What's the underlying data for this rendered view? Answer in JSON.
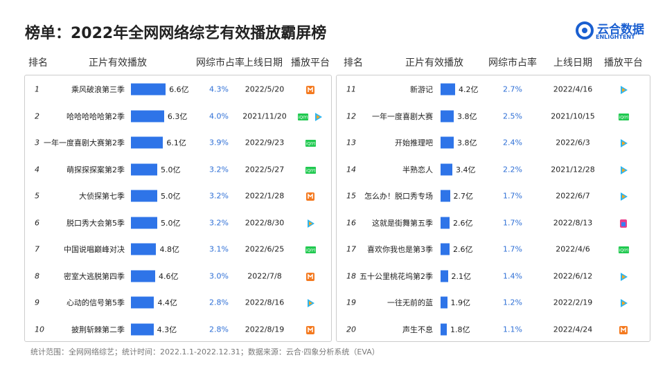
{
  "header": {
    "title": "榜单：2022年全网网络综艺有效播放霸屏榜",
    "logo": "云合数据",
    "logo_sub": "ENLIGHTENT"
  },
  "columns": [
    "排名",
    "正片有效播放",
    "网综市占率",
    "上线日期",
    "播放平台"
  ],
  "tables": [
    {
      "rows": [
        {
          "rank": 1,
          "name": "乘风破浪第三季",
          "plays": 6.6,
          "plays_label": "6.6亿",
          "share": "4.3%",
          "date": "2022/5/20"
        },
        {
          "rank": 2,
          "name": "哈哈哈哈哈第2季",
          "plays": 6.3,
          "plays_label": "6.3亿",
          "share": "4.0%",
          "date": "2021/11/20"
        },
        {
          "rank": 3,
          "name": "一年一度喜剧大赛第2季",
          "plays": 6.1,
          "plays_label": "6.1亿",
          "share": "3.9%",
          "date": "2022/9/23"
        },
        {
          "rank": 4,
          "name": "萌探探探案第2季",
          "plays": 5.0,
          "plays_label": "5.0亿",
          "share": "3.2%",
          "date": "2022/5/27"
        },
        {
          "rank": 5,
          "name": "大侦探第七季",
          "plays": 5.0,
          "plays_label": "5.0亿",
          "share": "3.2%",
          "date": "2022/1/28"
        },
        {
          "rank": 6,
          "name": "脱口秀大会第5季",
          "plays": 5.0,
          "plays_label": "5.0亿",
          "share": "3.2%",
          "date": "2022/8/30"
        },
        {
          "rank": 7,
          "name": "中国说唱巅峰对决",
          "plays": 4.8,
          "plays_label": "4.8亿",
          "share": "3.1%",
          "date": "2022/6/25"
        },
        {
          "rank": 8,
          "name": "密室大逃脱第四季",
          "plays": 4.6,
          "plays_label": "4.6亿",
          "share": "3.0%",
          "date": "2022/7/8"
        },
        {
          "rank": 9,
          "name": "心动的信号第5季",
          "plays": 4.4,
          "plays_label": "4.4亿",
          "share": "2.8%",
          "date": "2022/8/16"
        },
        {
          "rank": 10,
          "name": "披荆斩棘第二季",
          "plays": 4.3,
          "plays_label": "4.3亿",
          "share": "2.8%",
          "date": "2022/8/19"
        }
      ]
    },
    {
      "rows": [
        {
          "rank": 11,
          "name": "新游记",
          "plays": 4.2,
          "plays_label": "4.2亿",
          "share": "2.7%",
          "date": "2022/4/16"
        },
        {
          "rank": 12,
          "name": "一年一度喜剧大赛",
          "plays": 3.8,
          "plays_label": "3.8亿",
          "share": "2.5%",
          "date": "2021/10/15"
        },
        {
          "rank": 13,
          "name": "开始推理吧",
          "plays": 3.8,
          "plays_label": "3.8亿",
          "share": "2.4%",
          "date": "2022/6/3"
        },
        {
          "rank": 14,
          "name": "半熟恋人",
          "plays": 3.4,
          "plays_label": "3.4亿",
          "share": "2.2%",
          "date": "2021/12/28"
        },
        {
          "rank": 15,
          "name": "怎么办！脱口秀专场",
          "plays": 2.7,
          "plays_label": "2.7亿",
          "share": "1.7%",
          "date": "2022/6/7"
        },
        {
          "rank": 16,
          "name": "这就是街舞第五季",
          "plays": 2.6,
          "plays_label": "2.6亿",
          "share": "1.7%",
          "date": "2022/8/13"
        },
        {
          "rank": 17,
          "name": "喜欢你我也是第3季",
          "plays": 2.6,
          "plays_label": "2.6亿",
          "share": "1.7%",
          "date": "2022/4/6"
        },
        {
          "rank": 18,
          "name": "五十公里桃花坞第2季",
          "plays": 2.1,
          "plays_label": "2.1亿",
          "share": "1.4%",
          "date": "2022/6/12"
        },
        {
          "rank": 19,
          "name": "一往无前的蓝",
          "plays": 1.9,
          "plays_label": "1.9亿",
          "share": "1.2%",
          "date": "2022/2/19"
        },
        {
          "rank": 20,
          "name": "声生不息",
          "plays": 1.8,
          "plays_label": "1.8亿",
          "share": "1.1%",
          "date": "2022/4/24"
        }
      ]
    }
  ],
  "footer": "统计范围：全网网络综艺；统计时间：2022.1.1-2022.12.31；数据来源：云合·四象分析系统（EVA）"
}
